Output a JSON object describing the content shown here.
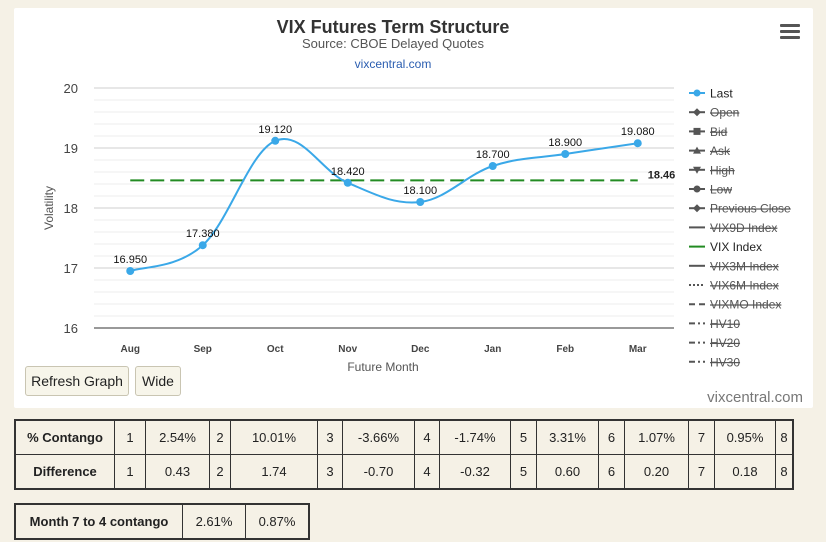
{
  "chart_data": {
    "type": "line",
    "title": "VIX Futures Term Structure",
    "subtitle": "Source: CBOE Delayed Quotes",
    "source_link": "vixcentral.com",
    "xlabel": "Future Month",
    "ylabel": "Volatility",
    "categories": [
      "Aug",
      "Sep",
      "Oct",
      "Nov",
      "Dec",
      "Jan",
      "Feb",
      "Mar"
    ],
    "ylim": [
      16,
      20
    ],
    "yticks": [
      "16",
      "17",
      "18",
      "19",
      "20"
    ],
    "series": [
      {
        "name": "Last",
        "color": "#3aa8e8",
        "values": [
          16.95,
          17.38,
          19.12,
          18.42,
          18.1,
          18.7,
          18.9,
          19.08
        ],
        "labels": [
          "16.950",
          "17.380",
          "19.120",
          "18.420",
          "18.100",
          "18.700",
          "18.900",
          "19.080"
        ]
      },
      {
        "name": "VIX Index",
        "color": "#228b22",
        "value": 18.46,
        "label": "18.46",
        "style": "dashed"
      }
    ],
    "legend": [
      {
        "name": "Last",
        "marker": "circle",
        "enabled": true,
        "color": "#3aa8e8"
      },
      {
        "name": "Open",
        "marker": "diamond",
        "enabled": false
      },
      {
        "name": "Bid",
        "marker": "square",
        "enabled": false
      },
      {
        "name": "Ask",
        "marker": "triangle",
        "enabled": false
      },
      {
        "name": "High",
        "marker": "triangle-down",
        "enabled": false
      },
      {
        "name": "Low",
        "marker": "circle",
        "enabled": false
      },
      {
        "name": "Previous Close",
        "marker": "diamond",
        "enabled": false
      },
      {
        "name": "VIX9D Index",
        "marker": "line",
        "enabled": false
      },
      {
        "name": "VIX Index",
        "marker": "line",
        "enabled": true,
        "color": "#228b22"
      },
      {
        "name": "VIX3M Index",
        "marker": "line",
        "enabled": false
      },
      {
        "name": "VIX6M Index",
        "marker": "dotted",
        "enabled": false
      },
      {
        "name": "VIXMO Index",
        "marker": "dashed",
        "enabled": false
      },
      {
        "name": "HV10",
        "marker": "dashdot",
        "enabled": false
      },
      {
        "name": "HV20",
        "marker": "dashdot",
        "enabled": false
      },
      {
        "name": "HV30",
        "marker": "dashdot",
        "enabled": false
      }
    ],
    "legend_position": "right",
    "grid": true
  },
  "buttons": {
    "refresh": "Refresh Graph",
    "wide": "Wide"
  },
  "credit": "vixcentral.com",
  "contango_table": {
    "rows": [
      {
        "label": "% Contango",
        "cells": [
          "1",
          "2.54%",
          "2",
          "10.01%",
          "3",
          "-3.66%",
          "4",
          "-1.74%",
          "5",
          "3.31%",
          "6",
          "1.07%",
          "7",
          "0.95%",
          "8"
        ]
      },
      {
        "label": "Difference",
        "cells": [
          "1",
          "0.43",
          "2",
          "1.74",
          "3",
          "-0.70",
          "4",
          "-0.32",
          "5",
          "0.60",
          "6",
          "0.20",
          "7",
          "0.18",
          "8"
        ]
      }
    ]
  },
  "month_contango": {
    "label": "Month 7 to 4 contango",
    "values": [
      "2.61%",
      "0.87%"
    ]
  }
}
